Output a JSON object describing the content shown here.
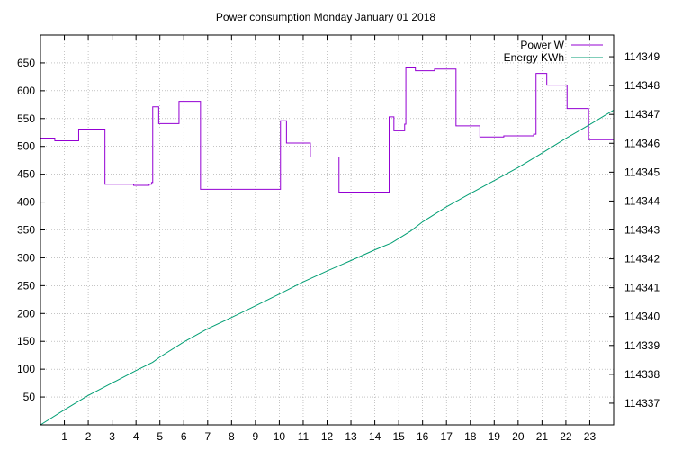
{
  "chart_data": {
    "type": "line",
    "title": "Power consumption Monday January 01 2018",
    "xlabel": "",
    "ylabel": "",
    "y2label": "",
    "x_range": [
      0,
      24
    ],
    "x_ticks": [
      1,
      2,
      3,
      4,
      5,
      6,
      7,
      8,
      9,
      10,
      11,
      12,
      13,
      14,
      15,
      16,
      17,
      18,
      19,
      20,
      21,
      22,
      23
    ],
    "ylim": [
      0,
      700
    ],
    "y_ticks": [
      50,
      100,
      150,
      200,
      250,
      300,
      350,
      400,
      450,
      500,
      550,
      600,
      650
    ],
    "y2lim": [
      114336.25,
      114349.75
    ],
    "y2_ticks": [
      114337,
      114338,
      114339,
      114340,
      114341,
      114342,
      114343,
      114344,
      114345,
      114346,
      114347,
      114348,
      114349
    ],
    "grid": true,
    "legend_position": "top-right",
    "series": [
      {
        "name": "Power W",
        "axis": "left",
        "step": true,
        "color": "#9400d3",
        "x": [
          0,
          0.6,
          1.6,
          2.7,
          3.9,
          4.55,
          4.65,
          4.7,
          4.95,
          5.8,
          6.7,
          10.05,
          10.3,
          11.3,
          12.5,
          14.55,
          14.6,
          14.8,
          15.25,
          15.3,
          15.7,
          16.5,
          17.4,
          18.4,
          19.4,
          20.65,
          20.75,
          21.2,
          22.05,
          22.95,
          24
        ],
        "y": [
          515,
          510,
          531,
          432,
          430,
          432,
          435,
          571,
          541,
          581,
          423,
          546,
          506,
          481,
          418,
          418,
          553,
          528,
          540,
          641,
          636,
          639,
          537,
          517,
          519,
          522,
          631,
          610,
          568,
          512,
          516
        ]
      },
      {
        "name": "Energy KWh",
        "axis": "right",
        "step": false,
        "color": "#009e73",
        "x": [
          0,
          1,
          2,
          3,
          4,
          4.7,
          5,
          6,
          7,
          8,
          9,
          10,
          11,
          12,
          13,
          14,
          14.7,
          15.5,
          16,
          17,
          18,
          19,
          20,
          21,
          22,
          23,
          24
        ],
        "y": [
          114336.25,
          114336.77,
          114337.27,
          114337.7,
          114338.13,
          114338.42,
          114338.6,
          114339.12,
          114339.58,
          114339.97,
          114340.37,
          114340.78,
          114341.2,
          114341.58,
          114341.94,
          114342.31,
          114342.55,
          114342.96,
          114343.28,
          114343.8,
          114344.26,
          114344.71,
          114345.16,
          114345.66,
          114346.17,
          114346.65,
          114347.15
        ]
      }
    ]
  }
}
